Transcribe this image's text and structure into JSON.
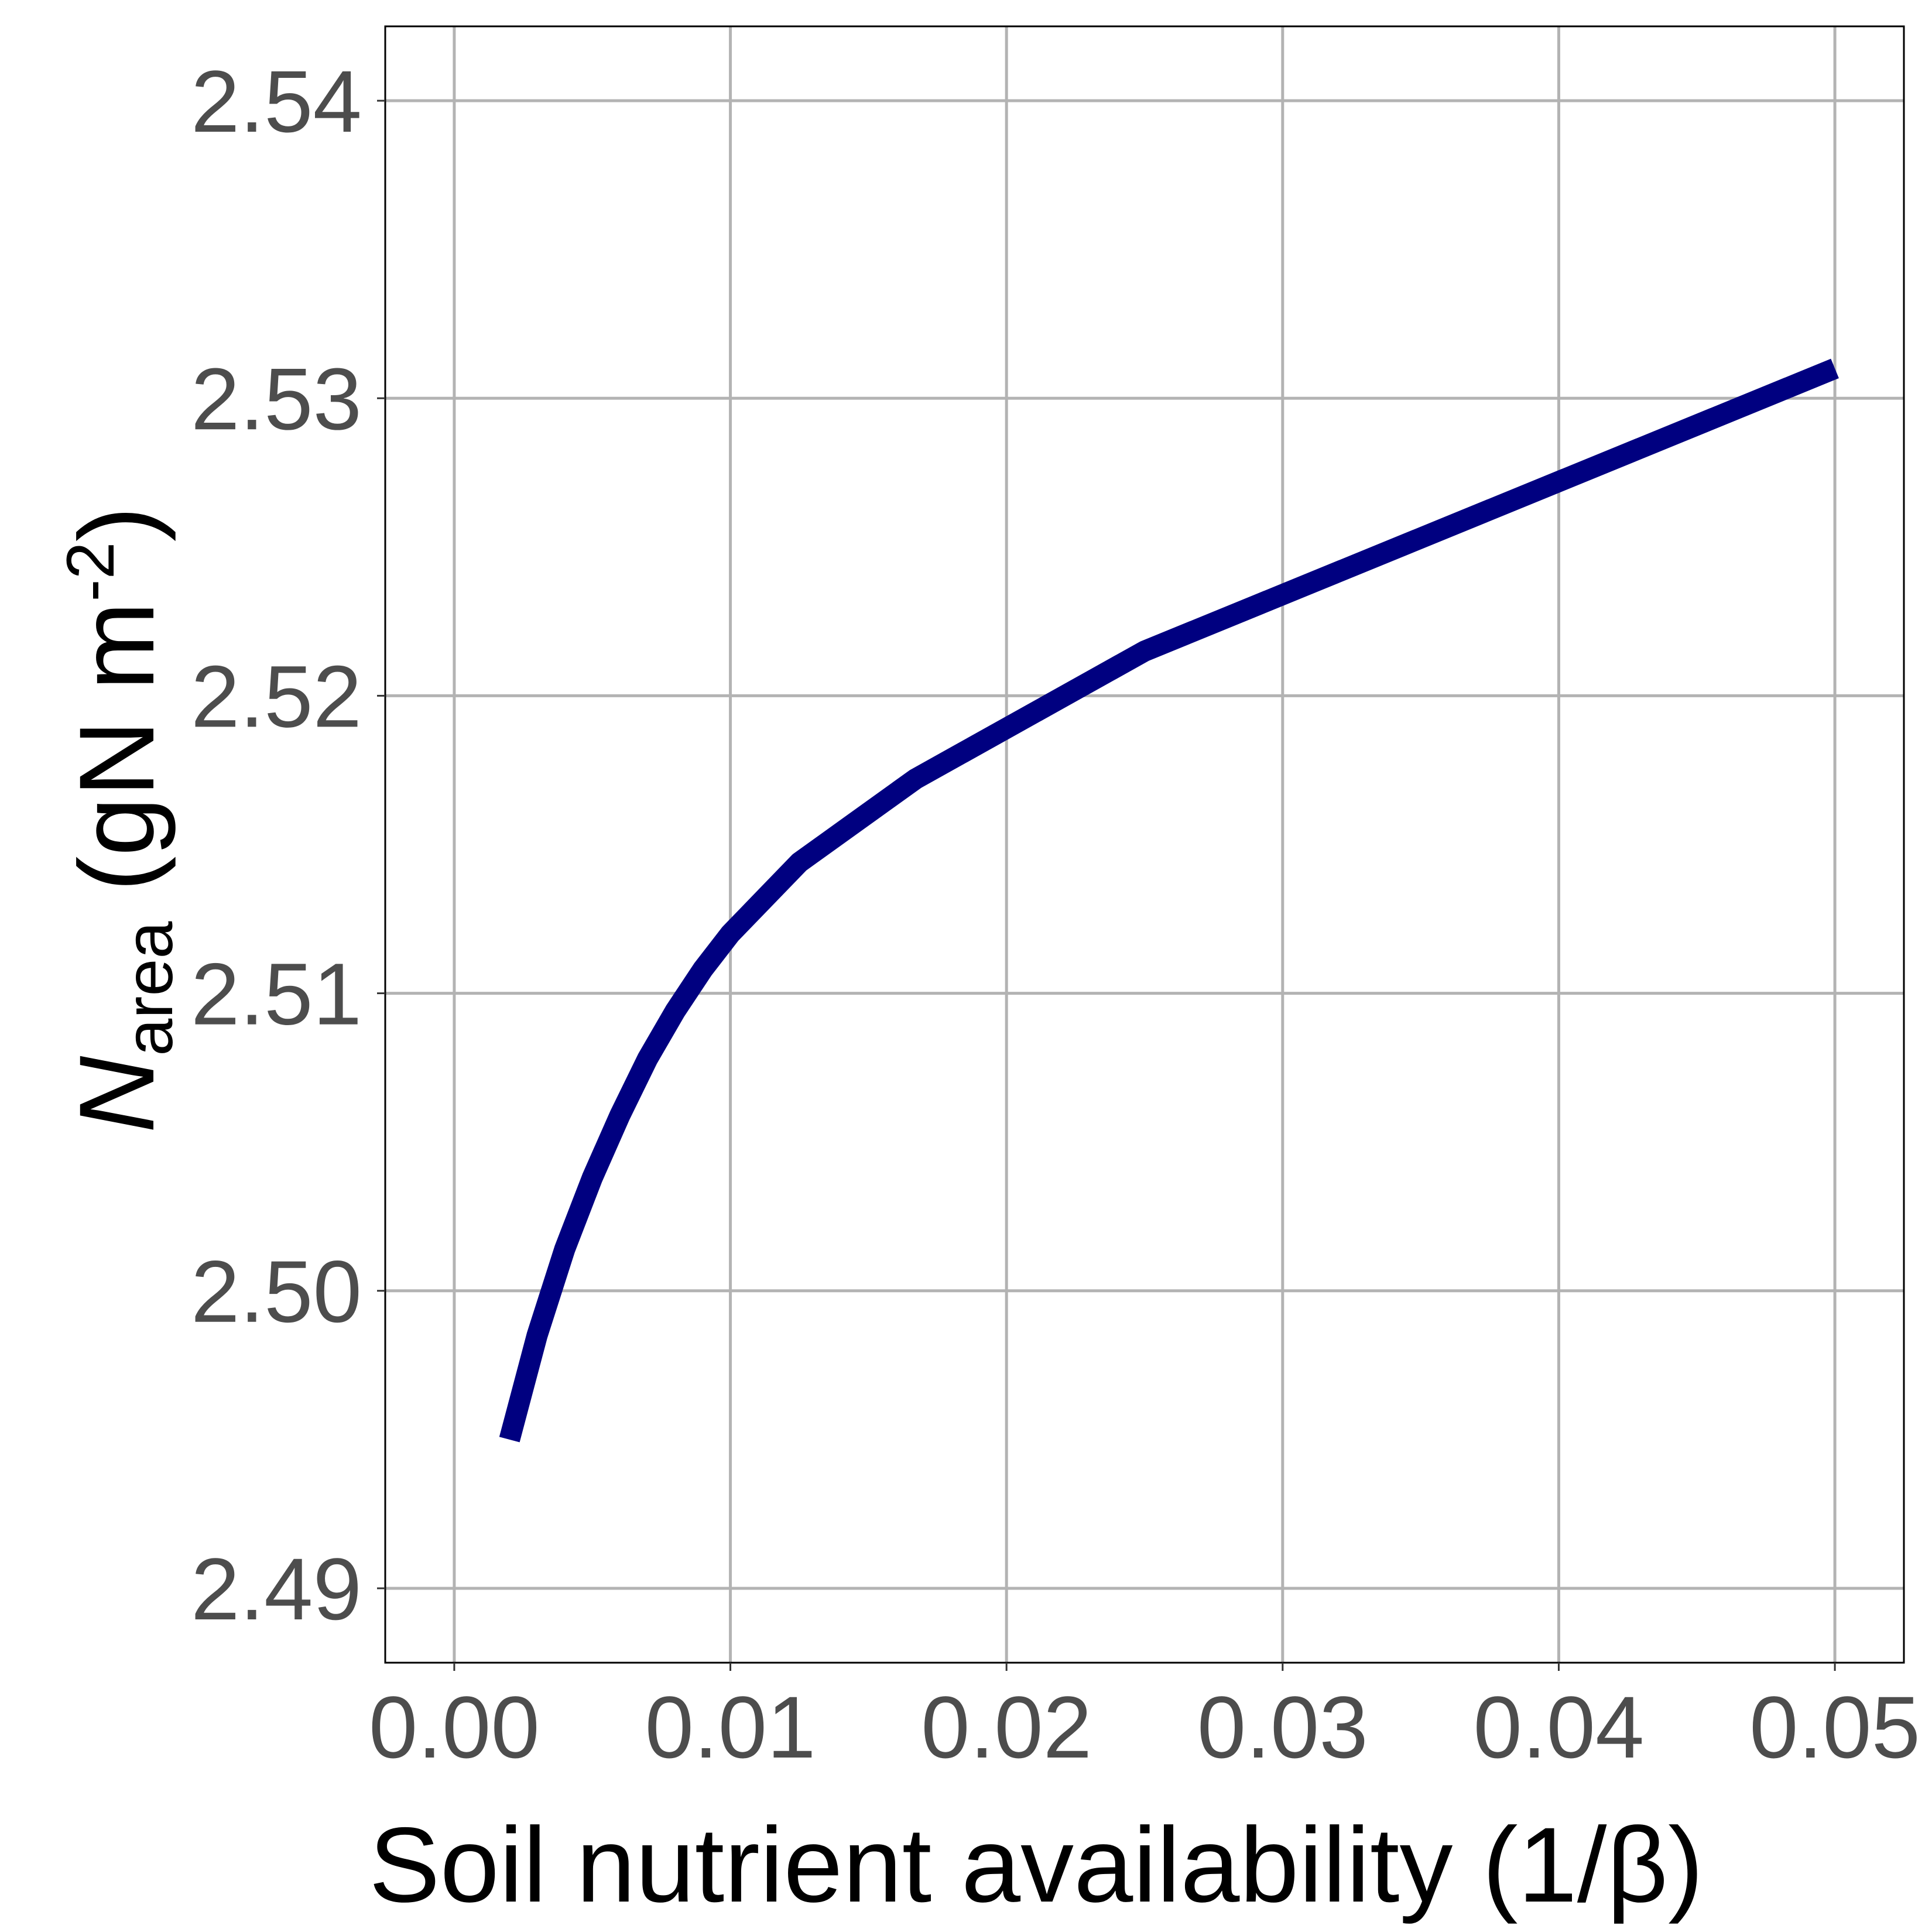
{
  "chart_data": {
    "type": "line",
    "xlabel": "Soil nutrient availability (1/β)",
    "ylabel": {
      "symbol": "N",
      "subscript": "area",
      "units_prefix": " (gN m",
      "superscript": "-2",
      "units_suffix": ")"
    },
    "xlim": [
      -0.0025,
      0.0525
    ],
    "ylim": [
      2.4875,
      2.5425
    ],
    "x_ticks": [
      "0.00",
      "0.01",
      "0.02",
      "0.03",
      "0.04",
      "0.05"
    ],
    "y_ticks": [
      "2.49",
      "2.50",
      "2.51",
      "2.52",
      "2.53",
      "2.54"
    ],
    "grid": true,
    "legend": "none",
    "series": [
      {
        "color": "#000080",
        "x": [
          0.002,
          0.003,
          0.004,
          0.005,
          0.006,
          0.007,
          0.008,
          0.009,
          0.01,
          0.0125,
          0.0167,
          0.025,
          0.05
        ],
        "y": [
          2.495,
          2.4985,
          2.5014,
          2.5038,
          2.5059,
          2.5078,
          2.5094,
          2.5108,
          2.512,
          2.5144,
          2.5172,
          2.5215,
          2.531
        ]
      }
    ]
  }
}
